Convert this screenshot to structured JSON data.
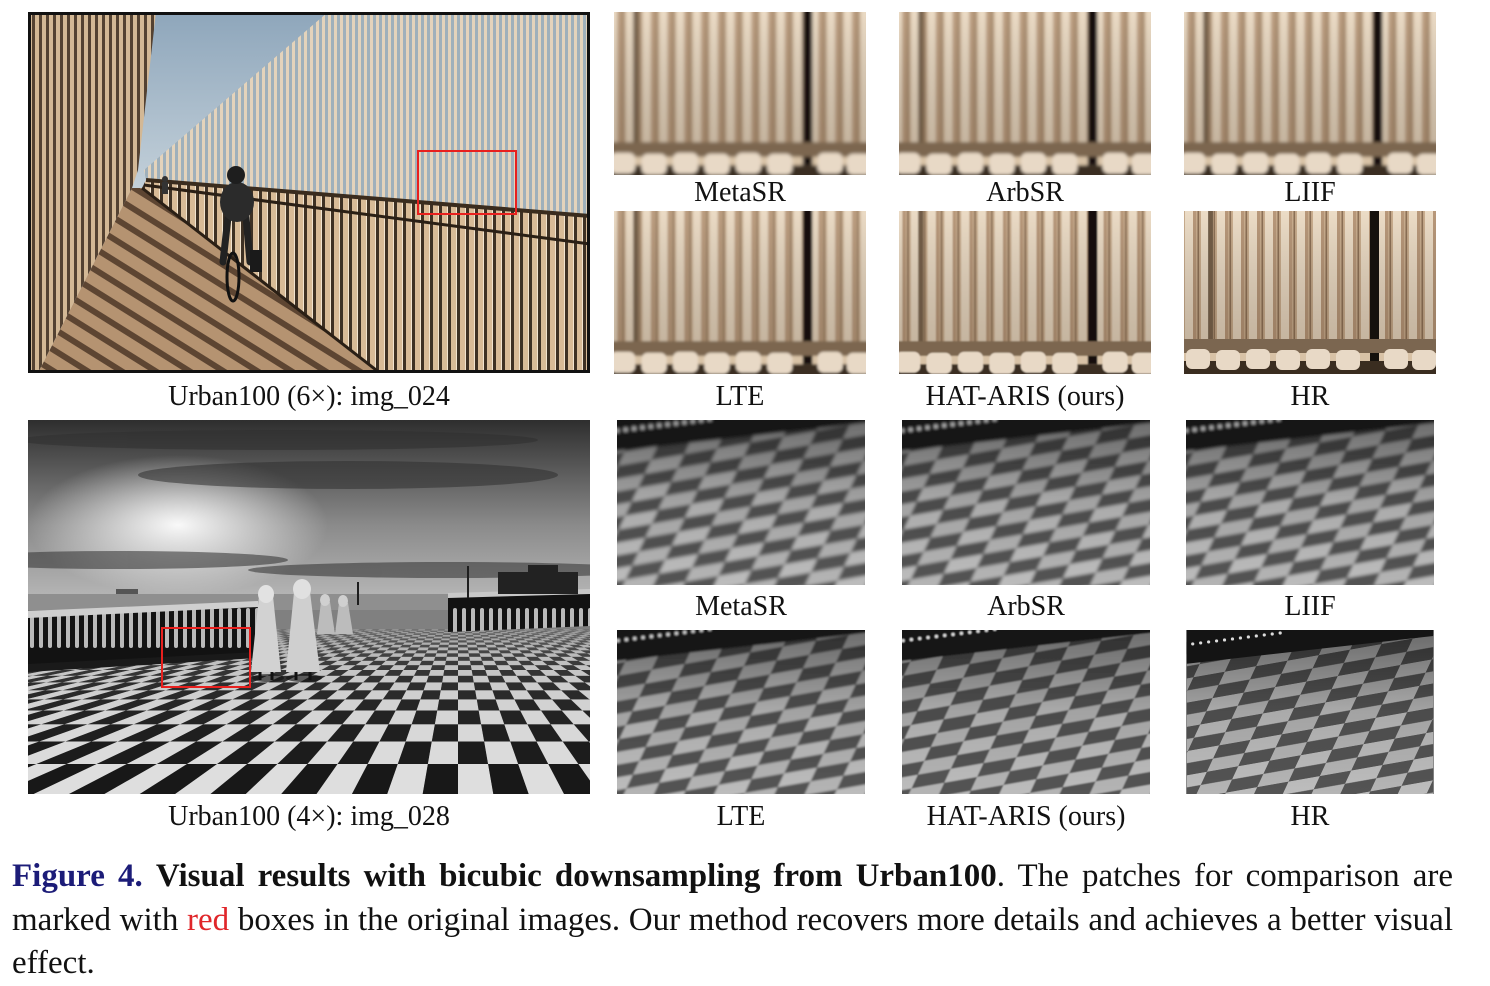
{
  "figure": {
    "label": "Figure 4.",
    "title": "Visual results with bicubic downsampling from Urban100",
    "text_before_red": ". The patches for comparison are marked with ",
    "red_word": "red",
    "text_after_red": " boxes in the original images. Our method recovers more details and achieves a better visual effect.",
    "colors": {
      "label": "#1c1c78",
      "red_word": "#e0262a",
      "comparison_box": "#e8201e"
    }
  },
  "examples": [
    {
      "caption": "Urban100 (6×): img_024",
      "patches": [
        "MetaSR",
        "ArbSR",
        "LIIF",
        "LTE",
        "HAT-ARIS (ours)",
        "HR"
      ]
    },
    {
      "caption": "Urban100 (4×): img_028",
      "patches": [
        "MetaSR",
        "ArbSR",
        "LIIF",
        "LTE",
        "HAT-ARIS (ours)",
        "HR"
      ]
    }
  ]
}
